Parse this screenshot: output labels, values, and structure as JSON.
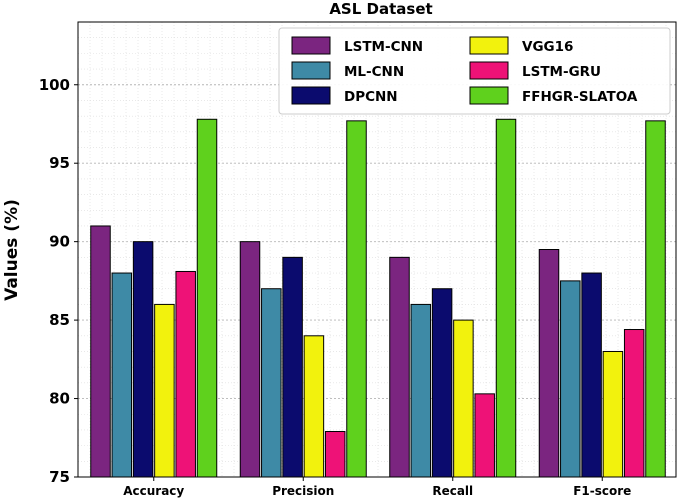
{
  "chart_data": {
    "type": "bar",
    "title": "ASL Dataset",
    "xlabel": "",
    "ylabel": "Values (%)",
    "ylim": [
      75,
      104
    ],
    "yticks": [
      75,
      80,
      85,
      90,
      95,
      100
    ],
    "grid": true,
    "legend_position": "top-right",
    "categories": [
      "Accuracy",
      "Precision",
      "Recall",
      "F1-score"
    ],
    "series": [
      {
        "name": "LSTM-CNN",
        "color": "#7b2580",
        "values": [
          91.0,
          90.0,
          89.0,
          89.5
        ]
      },
      {
        "name": "ML-CNN",
        "color": "#3e8aa6",
        "values": [
          88.0,
          87.0,
          86.0,
          87.5
        ]
      },
      {
        "name": "DPCNN",
        "color": "#0b0b6e",
        "values": [
          90.0,
          89.0,
          87.0,
          88.0
        ]
      },
      {
        "name": "VGG16",
        "color": "#f2f20d",
        "values": [
          86.0,
          84.0,
          85.0,
          83.0
        ]
      },
      {
        "name": "LSTM-GRU",
        "color": "#ee1277",
        "values": [
          88.1,
          77.9,
          80.3,
          84.4
        ]
      },
      {
        "name": "FFHGR-SLATOA",
        "color": "#5fd11d",
        "values": [
          97.8,
          97.7,
          97.8,
          97.7
        ]
      }
    ]
  }
}
